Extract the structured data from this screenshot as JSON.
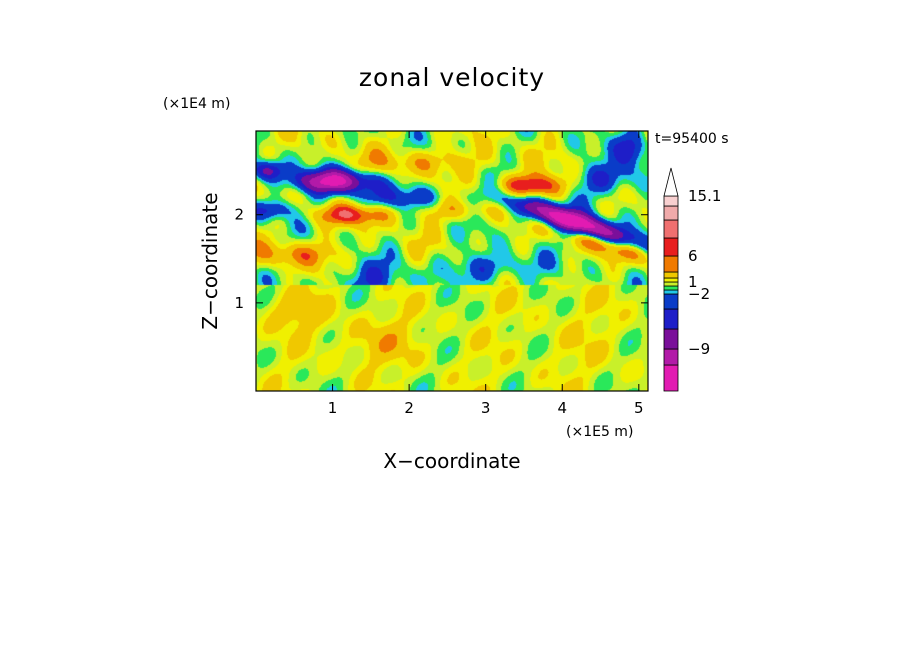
{
  "chart_data": {
    "type": "heatmap",
    "title": "zonal velocity",
    "xlabel": "X−coordinate",
    "ylabel": "Z−coordinate",
    "x_scale_label": "(×1E5 m)",
    "y_scale_label": "(×1E4 m)",
    "time_label": "t=95400 s",
    "xlim": [
      0,
      5.12
    ],
    "ylim": [
      0,
      2.95
    ],
    "x_ticks": [
      1,
      2,
      3,
      4,
      5
    ],
    "y_ticks": [
      1,
      2
    ],
    "colorbar": {
      "levels": [
        -14,
        -12,
        -9,
        -6,
        -4,
        -2,
        -1,
        0,
        1,
        2,
        4,
        6,
        8,
        10,
        12,
        15.1
      ],
      "colors": [
        "#e21bb2",
        "#b21aa8",
        "#7a0f9a",
        "#1e1ec8",
        "#0a3cc8",
        "#21c8e8",
        "#2ae85a",
        "#c8f02a",
        "#f0f000",
        "#f0c800",
        "#f07a00",
        "#e81e1e",
        "#f07070",
        "#f0aaaa",
        "#f8d0d0"
      ],
      "tick_labels": [
        "15.1",
        "6",
        "1",
        "−2",
        "−9"
      ],
      "tick_values": [
        15.1,
        6,
        1,
        -2,
        -9
      ],
      "extend": "max"
    },
    "field_description_points": [
      {
        "x": 1.0,
        "z": 2.35,
        "u": -10
      },
      {
        "x": 4.1,
        "z": 1.9,
        "u": -12
      },
      {
        "x": 3.8,
        "z": 2.3,
        "u": 6
      },
      {
        "x": 1.2,
        "z": 2.0,
        "u": 5
      },
      {
        "x": 4.0,
        "z": 0.6,
        "u": 1
      },
      {
        "x": 0.5,
        "z": 0.9,
        "u": 3
      },
      {
        "x": 1.5,
        "z": 1.2,
        "u": -2
      }
    ]
  }
}
